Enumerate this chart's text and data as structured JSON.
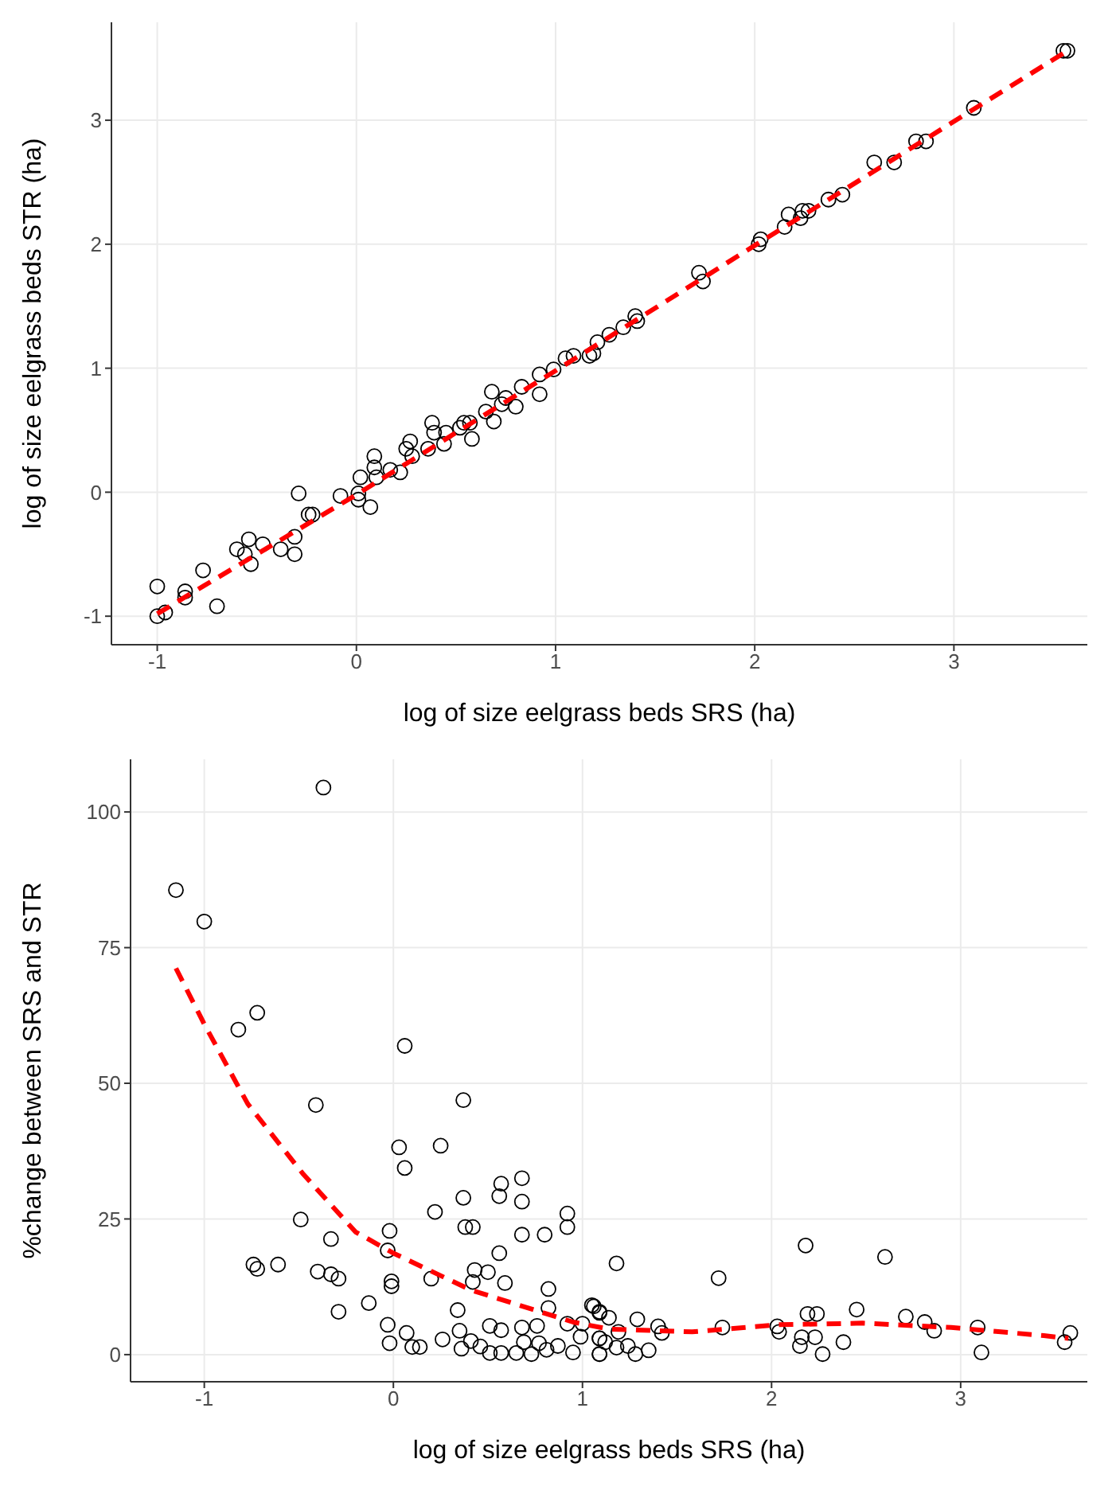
{
  "chart_data": [
    {
      "type": "scatter",
      "xlabel": "log of size eelgrass beds SRS (ha)",
      "ylabel": "log of size eelgrass beds STR (ha)",
      "xlim": [
        -1.23,
        3.67
      ],
      "ylim": [
        -1.23,
        3.79
      ],
      "xticks": [
        -1,
        0,
        1,
        2,
        3
      ],
      "yticks": [
        -1,
        0,
        1,
        2,
        3
      ],
      "grid": true,
      "marker": "circle",
      "series": [
        {
          "type": "scatter",
          "color": "#000000",
          "x": [
            -1.0,
            -1.0,
            -0.96,
            -0.86,
            -0.86,
            -0.77,
            -0.7,
            -0.6,
            -0.54,
            -0.56,
            -0.53,
            -0.47,
            -0.38,
            -0.31,
            -0.31,
            -0.29,
            -0.24,
            -0.22,
            -0.08,
            0.01,
            0.02,
            0.01,
            0.07,
            0.09,
            0.09,
            0.1,
            0.17,
            0.22,
            0.25,
            0.27,
            0.28,
            0.36,
            0.38,
            0.39,
            0.44,
            0.45,
            0.52,
            0.54,
            0.57,
            0.58,
            0.65,
            0.68,
            0.69,
            0.73,
            0.75,
            0.8,
            0.83,
            0.92,
            0.92,
            0.99,
            1.05,
            1.09,
            1.17,
            1.21,
            1.19,
            1.27,
            1.34,
            1.4,
            1.41,
            1.72,
            1.74,
            2.02,
            2.03,
            2.15,
            2.17,
            2.23,
            2.24,
            2.27,
            2.37,
            2.44,
            2.6,
            2.7,
            2.81,
            2.86,
            3.1,
            3.55,
            3.57
          ],
          "values": [
            -0.76,
            -1.0,
            -0.97,
            -0.8,
            -0.85,
            -0.63,
            -0.92,
            -0.46,
            -0.38,
            -0.5,
            -0.58,
            -0.42,
            -0.46,
            -0.36,
            -0.5,
            -0.01,
            -0.18,
            -0.18,
            -0.03,
            -0.01,
            0.12,
            -0.06,
            -0.12,
            0.29,
            0.2,
            0.12,
            0.18,
            0.16,
            0.35,
            0.41,
            0.29,
            0.35,
            0.56,
            0.48,
            0.39,
            0.48,
            0.52,
            0.56,
            0.56,
            0.43,
            0.65,
            0.81,
            0.57,
            0.71,
            0.76,
            0.69,
            0.85,
            0.79,
            0.95,
            0.99,
            1.08,
            1.1,
            1.1,
            1.21,
            1.12,
            1.27,
            1.33,
            1.42,
            1.38,
            1.77,
            1.7,
            2.0,
            2.04,
            2.14,
            2.24,
            2.21,
            2.27,
            2.27,
            2.36,
            2.4,
            2.66,
            2.66,
            2.83,
            2.83,
            3.1,
            3.56,
            3.56
          ]
        },
        {
          "type": "line",
          "color": "#ff0000",
          "line_style": "dashed",
          "marker": "none",
          "x": [
            -1,
            0,
            1,
            2,
            3.57
          ],
          "values": [
            -0.98,
            -0.02,
            0.98,
            1.99,
            3.56
          ]
        }
      ]
    },
    {
      "type": "scatter",
      "xlabel": "log of size eelgrass beds SRS (ha)",
      "ylabel": "%change between SRS and STR",
      "xlim": [
        -1.39,
        3.67
      ],
      "ylim": [
        -5,
        109.7
      ],
      "xticks": [
        -1,
        0,
        1,
        2,
        3
      ],
      "yticks": [
        0,
        25,
        50,
        75,
        100
      ],
      "grid": true,
      "marker": "circle",
      "series": [
        {
          "type": "scatter",
          "color": "#000000",
          "x": [
            -0.37,
            -1.15,
            -1.0,
            -0.72,
            -0.82,
            0.06,
            -0.41,
            0.37,
            0.03,
            0.25,
            0.06,
            0.57,
            0.68,
            0.56,
            0.68,
            0.37,
            0.22,
            0.92,
            0.92,
            0.38,
            0.42,
            -0.49,
            -0.02,
            -0.33,
            0.68,
            0.8,
            -0.03,
            0.56,
            -0.74,
            -0.72,
            -0.61,
            -0.4,
            -0.33,
            -0.29,
            0.43,
            0.5,
            0.2,
            0.42,
            0.59,
            -0.01,
            -0.01,
            0.82,
            0.82,
            -0.29,
            -0.13,
            0.34,
            -0.03,
            0.07,
            -0.02,
            0.1,
            0.14,
            0.26,
            0.35,
            0.36,
            0.41,
            0.46,
            0.51,
            0.51,
            0.57,
            0.57,
            0.65,
            0.68,
            0.69,
            0.73,
            0.76,
            0.77,
            0.81,
            0.87,
            0.92,
            0.95,
            0.99,
            1.0,
            1.05,
            1.09,
            1.09,
            1.09,
            1.06,
            1.09,
            1.14,
            1.09,
            1.09,
            1.12,
            1.18,
            1.19,
            1.18,
            1.24,
            1.28,
            1.29,
            1.35,
            1.4,
            1.42,
            1.72,
            1.74,
            2.03,
            2.04,
            2.15,
            2.16,
            2.18,
            2.19,
            2.24,
            2.23,
            2.27,
            2.38,
            2.45,
            2.6,
            2.71,
            2.81,
            2.86,
            3.09,
            3.11,
            3.55,
            3.58
          ],
          "values": [
            104.5,
            85.6,
            79.8,
            63.0,
            59.9,
            56.9,
            46.0,
            46.9,
            38.2,
            38.5,
            34.4,
            31.5,
            32.5,
            29.2,
            28.2,
            28.9,
            26.3,
            26.0,
            23.5,
            23.5,
            23.5,
            24.9,
            22.8,
            21.3,
            22.1,
            22.1,
            19.2,
            18.7,
            16.6,
            15.8,
            16.6,
            15.3,
            14.8,
            14.0,
            15.6,
            15.2,
            14.0,
            13.4,
            13.2,
            13.5,
            12.6,
            12.1,
            8.6,
            7.9,
            9.5,
            8.2,
            5.5,
            4.0,
            2.1,
            1.4,
            1.4,
            2.8,
            4.4,
            1.1,
            2.5,
            1.5,
            5.3,
            0.3,
            4.5,
            0.3,
            0.3,
            5.0,
            2.3,
            0.1,
            5.3,
            2.1,
            0.9,
            1.6,
            5.7,
            0.4,
            3.3,
            5.7,
            9.1,
            7.9,
            0.1,
            3.0,
            8.9,
            7.7,
            6.8,
            3.0,
            0.1,
            2.3,
            16.8,
            4.2,
            1.3,
            1.6,
            0.1,
            6.5,
            0.8,
            5.2,
            4.0,
            14.1,
            5.0,
            5.2,
            4.2,
            1.6,
            3.2,
            20.1,
            7.5,
            7.5,
            3.2,
            0.1,
            2.3,
            8.3,
            18.0,
            7.0,
            6.0,
            4.4,
            5.0,
            0.4,
            2.3,
            4.0
          ]
        },
        {
          "type": "line",
          "color": "#ff0000",
          "line_style": "dashed",
          "marker": "none",
          "x": [
            -1.15,
            -1.0,
            -0.77,
            -0.48,
            -0.2,
            0,
            0.41,
            0.95,
            1.14,
            1.58,
            2.03,
            2.48,
            2.95,
            3.44,
            3.57
          ],
          "values": [
            71.2,
            60.9,
            46.2,
            33.4,
            22.6,
            18.7,
            11.9,
            6.0,
            4.7,
            4.2,
            5.5,
            5.8,
            5.0,
            3.5,
            3.0
          ]
        }
      ]
    }
  ]
}
